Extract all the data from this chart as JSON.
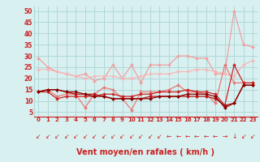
{
  "x": [
    0,
    1,
    2,
    3,
    4,
    5,
    6,
    7,
    8,
    9,
    10,
    11,
    12,
    13,
    14,
    15,
    16,
    17,
    18,
    19,
    20,
    21,
    22,
    23
  ],
  "series": [
    {
      "name": "rafales_light1",
      "color": "#f0a0a0",
      "lw": 0.9,
      "marker": "D",
      "ms": 2.0,
      "y": [
        29,
        25,
        23,
        22,
        21,
        22,
        19,
        20,
        26,
        20,
        26,
        18,
        26,
        26,
        26,
        30,
        30,
        29,
        29,
        22,
        22,
        50,
        35,
        34
      ]
    },
    {
      "name": "rafales_light2",
      "color": "#f5b8b8",
      "lw": 0.9,
      "marker": "D",
      "ms": 2.0,
      "y": [
        24,
        24,
        23,
        22,
        21,
        20,
        21,
        21,
        21,
        20,
        20,
        21,
        22,
        22,
        22,
        23,
        23,
        24,
        24,
        23,
        22,
        21,
        26,
        28
      ]
    },
    {
      "name": "wind_med_light",
      "color": "#e87878",
      "lw": 0.9,
      "marker": "D",
      "ms": 2.0,
      "y": [
        14,
        15,
        12,
        13,
        13,
        7,
        13,
        16,
        15,
        11,
        6,
        14,
        14,
        14,
        15,
        17,
        14,
        14,
        13,
        9,
        26,
        18,
        18,
        18
      ]
    },
    {
      "name": "wind_dark1",
      "color": "#cc2222",
      "lw": 0.9,
      "marker": "D",
      "ms": 2.0,
      "y": [
        14,
        14,
        11,
        12,
        12,
        12,
        12,
        13,
        13,
        12,
        12,
        13,
        13,
        14,
        14,
        14,
        15,
        14,
        14,
        13,
        8,
        26,
        18,
        18
      ]
    },
    {
      "name": "wind_dark2",
      "color": "#bb1111",
      "lw": 0.9,
      "marker": "D",
      "ms": 2.0,
      "y": [
        14,
        15,
        15,
        14,
        13,
        13,
        13,
        12,
        11,
        11,
        11,
        11,
        12,
        12,
        12,
        12,
        12,
        12,
        12,
        11,
        8,
        9,
        17,
        17
      ]
    },
    {
      "name": "wind_dark3",
      "color": "#880000",
      "lw": 0.9,
      "marker": "D",
      "ms": 2.0,
      "y": [
        14,
        15,
        15,
        14,
        14,
        13,
        12,
        12,
        11,
        11,
        11,
        11,
        11,
        12,
        12,
        12,
        13,
        13,
        13,
        12,
        7,
        9,
        17,
        17
      ]
    }
  ],
  "xlabel": "Vent moyen/en rafales ( km/h )",
  "xlim_lo": -0.5,
  "xlim_hi": 23.5,
  "ylim_lo": 3,
  "ylim_hi": 52,
  "yticks": [
    5,
    10,
    15,
    20,
    25,
    30,
    35,
    40,
    45,
    50
  ],
  "xticks": [
    0,
    1,
    2,
    3,
    4,
    5,
    6,
    7,
    8,
    9,
    10,
    11,
    12,
    13,
    14,
    15,
    16,
    17,
    18,
    19,
    20,
    21,
    22,
    23
  ],
  "bg_color": "#d8f0f0",
  "grid_color": "#b0d8d8",
  "xlabel_color": "#cc2222",
  "tick_color": "#cc2222",
  "arrow_color": "#cc2222",
  "arrow_chars": [
    "↙",
    "↙",
    "↙",
    "↙",
    "↙",
    "↙",
    "↙",
    "↙",
    "↙",
    "↙",
    "↙",
    "↙",
    "↙",
    "↙",
    "←",
    "←",
    "←",
    "←",
    "←",
    "←",
    "→",
    "↓",
    "↙",
    "↙"
  ]
}
